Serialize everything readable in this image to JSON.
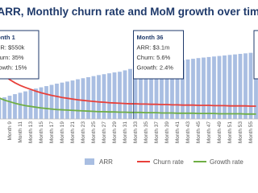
{
  "chart_data": {
    "type": "bar-line",
    "title": "ARR, Monthly churn rate and MoM growth over time",
    "categories": [
      null,
      null,
      "Month 9",
      null,
      "Month 11",
      null,
      "Month 13",
      null,
      "Month 15",
      null,
      "Month 17",
      null,
      "Month 19",
      null,
      "Month 21",
      null,
      "Month 23",
      null,
      "Month 25",
      null,
      "Month 27",
      null,
      "Month 29",
      null,
      "Month 31",
      null,
      "Month 33",
      null,
      "Month 35",
      null,
      "Month 37",
      null,
      "Month 39",
      null,
      "Month 41",
      null,
      "Month 43",
      null,
      "Month 45",
      null,
      "Month 47",
      null,
      "Month 49",
      null,
      "Month 51",
      null,
      "Month 53",
      null,
      "Month 55",
      null
    ],
    "ylim": [
      0,
      4500
    ],
    "y2lim": [
      0,
      30
    ],
    "series": [
      {
        "name": "ARR",
        "color": "#a9bee2",
        "values": [
          1150,
          1240,
          1330,
          1420,
          1500,
          1580,
          1660,
          1740,
          1810,
          1880,
          1950,
          2020,
          2080,
          2140,
          2200,
          2270,
          2330,
          2390,
          2450,
          2510,
          2560,
          2610,
          2660,
          2700,
          2780,
          2860,
          2930,
          2990,
          3050,
          3100,
          3150,
          3200,
          3240,
          3280,
          3320,
          3360,
          3400,
          3440,
          3480,
          3510,
          3540,
          3570,
          3600,
          3630,
          3660,
          3690,
          3720,
          3750,
          3780,
          3810
        ]
      },
      {
        "name": "Churn rate",
        "color": "#e8403a",
        "axis": "y2",
        "values": [
          18,
          16.5,
          15,
          13.8,
          12.8,
          12,
          11.3,
          10.6,
          10,
          9.5,
          9,
          8.6,
          8.2,
          7.9,
          7.6,
          7.3,
          7.1,
          6.9,
          6.7,
          6.5,
          6.4,
          6.2,
          6.1,
          6,
          5.9,
          5.8,
          5.8,
          5.7,
          5.7,
          5.6,
          5.6,
          5.5,
          5.5,
          5.4,
          5.4,
          5.3,
          5.3,
          5.3,
          5.2,
          5.2,
          5.2,
          5.1,
          5.1,
          5.1,
          5,
          5,
          5,
          5,
          4.9,
          4.9
        ]
      },
      {
        "name": "Growth rate",
        "color": "#6fae45",
        "axis": "y2",
        "values": [
          8,
          7.2,
          6.6,
          6,
          5.5,
          5.1,
          4.8,
          4.5,
          4.2,
          4,
          3.8,
          3.6,
          3.5,
          3.4,
          3.3,
          3.2,
          3.1,
          3,
          2.9,
          2.8,
          2.8,
          2.7,
          2.7,
          2.6,
          2.6,
          2.5,
          2.5,
          2.5,
          2.4,
          2.4,
          2.4,
          2.3,
          2.3,
          2.3,
          2.2,
          2.2,
          2.2,
          2.2,
          2.1,
          2.1,
          2.1,
          2.1,
          2,
          2,
          2,
          2,
          2,
          1.9,
          1.9,
          1.9
        ]
      }
    ],
    "annotations": [
      {
        "lines": [
          "Month 1",
          "ARR: $550k",
          "Churn: 35%",
          "Growth: 15%"
        ]
      },
      {
        "lines": [
          "Month 36",
          "ARR: $3.1m",
          "Churn: 5.6%",
          "Growth: 2.4%"
        ]
      }
    ],
    "legend": "bottom"
  }
}
